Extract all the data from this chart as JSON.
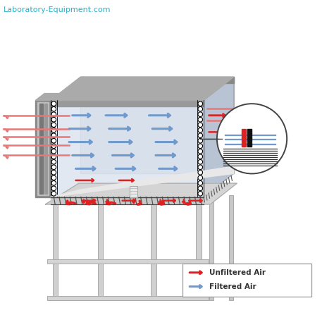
{
  "bg_color": "#ffffff",
  "title_text": "Laboratory-Equipment.com",
  "title_color": "#2ab0c8",
  "legend_items": [
    {
      "label": "Unfiltered Air",
      "color": "#dd2222"
    },
    {
      "label": "Filtered Air",
      "color": "#7099cc"
    }
  ],
  "red": "#dd2222",
  "pink": "#e87878",
  "blue": "#7099cc",
  "dark": "#444444",
  "gray1": "#aaaaaa",
  "gray2": "#cccccc",
  "gray3": "#e0e4ec",
  "gray4": "#888888",
  "cabinet_face": "#dce4f0",
  "cabinet_top": "#c8d0dc",
  "cabinet_side": "#b8c4d4"
}
